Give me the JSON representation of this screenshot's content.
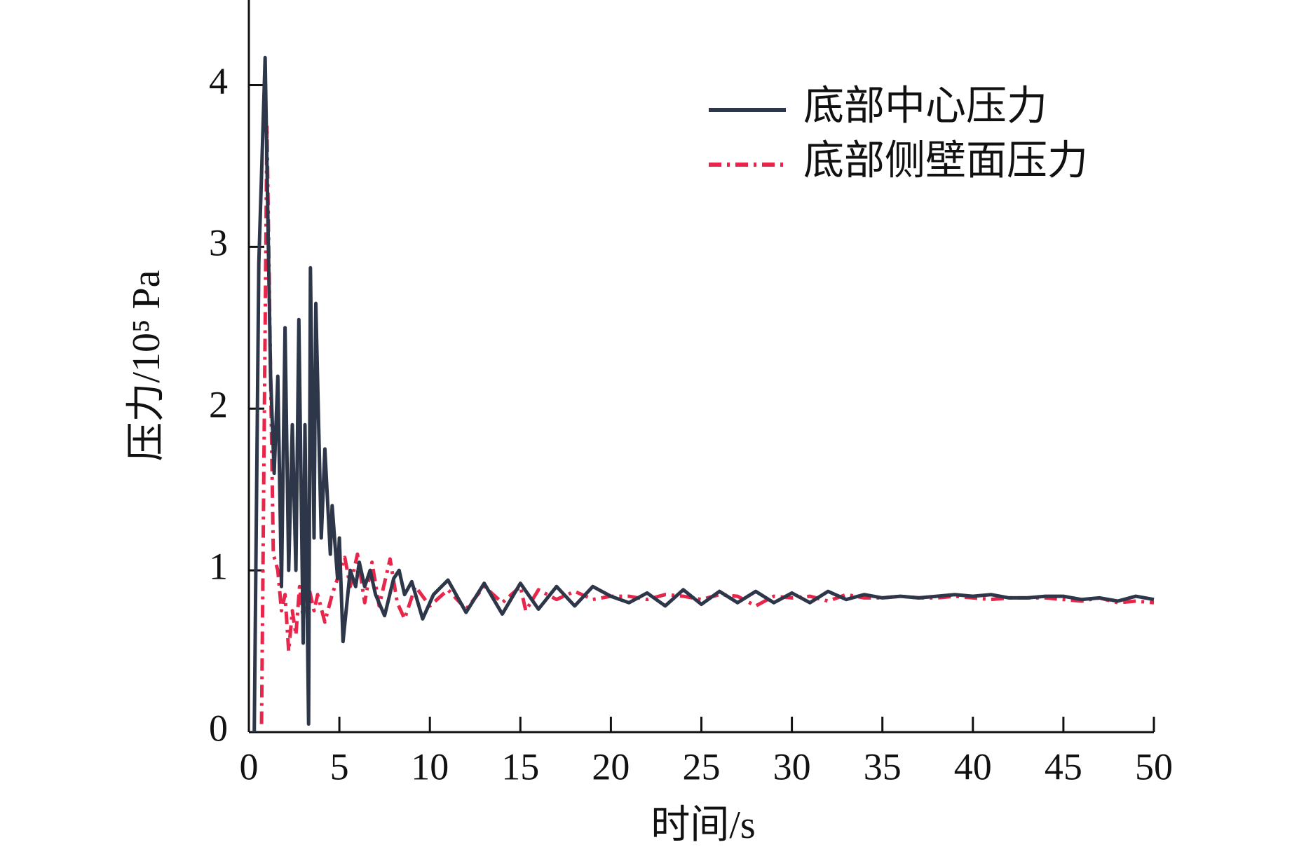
{
  "chart_data": {
    "type": "line",
    "xlabel": "时间/s",
    "ylabel": "压力/10⁵ Pa",
    "xlim": [
      0,
      50
    ],
    "ylim": [
      0,
      4.5
    ],
    "xticks": [
      0,
      5,
      10,
      15,
      20,
      25,
      30,
      35,
      40,
      45,
      50
    ],
    "yticks": [
      0,
      1,
      2,
      3,
      4
    ],
    "legend": "upper right",
    "series": [
      {
        "name": "底部中心压力",
        "color": "#2e3649",
        "style": "solid",
        "x": [
          0.3,
          0.55,
          0.9,
          1.2,
          1.4,
          1.6,
          1.8,
          2.0,
          2.2,
          2.4,
          2.6,
          2.76,
          3.0,
          3.1,
          3.3,
          3.4,
          3.6,
          3.7,
          4.0,
          4.2,
          4.5,
          4.6,
          4.9,
          5.0,
          5.2,
          5.6,
          5.9,
          6.1,
          6.4,
          6.7,
          7.0,
          7.5,
          8.0,
          8.3,
          8.6,
          9.0,
          9.6,
          10.2,
          11,
          12,
          13,
          14,
          15,
          16,
          17,
          18,
          19,
          20,
          21,
          22,
          23,
          24,
          25,
          26,
          27,
          28,
          29,
          30,
          31,
          32,
          33,
          34,
          35,
          36,
          37,
          38,
          39,
          40,
          41,
          42,
          43,
          44,
          45,
          46,
          47,
          48,
          49,
          50
        ],
        "values": [
          0,
          2.9,
          4.17,
          2.2,
          1.6,
          2.2,
          0.9,
          2.5,
          1.0,
          1.9,
          1.0,
          2.55,
          0.55,
          1.9,
          0.05,
          2.87,
          1.2,
          2.65,
          1.2,
          1.75,
          1.1,
          1.4,
          0.95,
          1.2,
          0.56,
          1.0,
          0.9,
          1.05,
          0.9,
          1.0,
          0.85,
          0.72,
          0.95,
          1.0,
          0.85,
          0.93,
          0.7,
          0.85,
          0.94,
          0.74,
          0.92,
          0.73,
          0.92,
          0.76,
          0.9,
          0.78,
          0.9,
          0.84,
          0.8,
          0.86,
          0.78,
          0.88,
          0.79,
          0.87,
          0.8,
          0.87,
          0.8,
          0.86,
          0.8,
          0.87,
          0.82,
          0.85,
          0.83,
          0.84,
          0.83,
          0.84,
          0.85,
          0.84,
          0.85,
          0.83,
          0.83,
          0.84,
          0.84,
          0.82,
          0.83,
          0.81,
          0.84,
          0.82
        ]
      },
      {
        "name": "底部侧壁面压力",
        "color": "#e8254a",
        "style": "dashdot",
        "x": [
          0.7,
          1.0,
          1.2,
          1.35,
          1.6,
          1.8,
          2.0,
          2.2,
          2.4,
          2.6,
          2.8,
          3.0,
          3.2,
          3.6,
          3.8,
          4.2,
          4.6,
          4.9,
          5.3,
          5.6,
          6.0,
          6.4,
          6.8,
          7.2,
          7.8,
          8.2,
          8.6,
          9.2,
          10,
          11,
          12,
          13,
          14,
          15,
          15.3,
          16,
          17,
          18,
          19,
          20,
          21,
          22,
          23,
          24,
          25,
          26,
          27,
          28,
          29,
          30,
          31,
          32,
          33,
          34,
          35,
          36,
          37,
          38,
          39,
          40,
          41,
          42,
          43,
          44,
          45,
          46,
          47,
          48,
          49,
          50
        ],
        "values": [
          0.05,
          3.75,
          2.2,
          1.1,
          1.0,
          0.75,
          0.85,
          0.5,
          0.75,
          0.6,
          0.9,
          0.7,
          0.95,
          0.75,
          0.85,
          0.68,
          0.85,
          0.95,
          1.08,
          0.9,
          1.1,
          0.8,
          1.05,
          0.78,
          1.07,
          0.8,
          0.7,
          0.9,
          0.78,
          0.88,
          0.76,
          0.9,
          0.8,
          0.9,
          0.75,
          0.88,
          0.82,
          0.87,
          0.82,
          0.84,
          0.84,
          0.82,
          0.85,
          0.84,
          0.82,
          0.85,
          0.84,
          0.78,
          0.84,
          0.83,
          0.84,
          0.81,
          0.85,
          0.83,
          0.83,
          0.84,
          0.83,
          0.83,
          0.84,
          0.83,
          0.82,
          0.83,
          0.83,
          0.83,
          0.82,
          0.81,
          0.83,
          0.8,
          0.81,
          0.8
        ]
      }
    ]
  }
}
